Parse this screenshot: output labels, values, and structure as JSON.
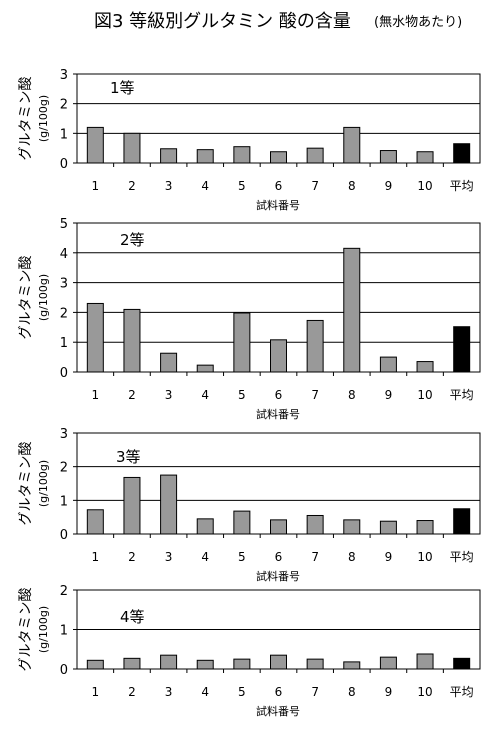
{
  "figure": {
    "title": "図3 等級別グルタミン 酸の含量",
    "subtitle": "(無水物あたり)"
  },
  "chart_data": [
    {
      "type": "bar",
      "label": "1等",
      "ylabel": "グルタミン酸",
      "yunit": "(g/100g)",
      "xlabel": "試料番号",
      "ylim": [
        0,
        3
      ],
      "yticks": [
        "0",
        "1",
        "2",
        "3"
      ],
      "categories": [
        "1",
        "2",
        "3",
        "4",
        "5",
        "6",
        "7",
        "8",
        "9",
        "10",
        "平均"
      ],
      "values": [
        1.2,
        1.0,
        0.48,
        0.45,
        0.55,
        0.38,
        0.5,
        1.2,
        0.42,
        0.38,
        0.65
      ],
      "colors": [
        "#999999",
        "#999999",
        "#999999",
        "#999999",
        "#999999",
        "#999999",
        "#999999",
        "#999999",
        "#999999",
        "#999999",
        "#000000"
      ],
      "grid": true
    },
    {
      "type": "bar",
      "label": "2等",
      "ylabel": "グルタミン酸",
      "yunit": "(g/100g)",
      "xlabel": "試料番号",
      "ylim": [
        0,
        5
      ],
      "yticks": [
        "0",
        "1",
        "2",
        "3",
        "4",
        "5"
      ],
      "categories": [
        "1",
        "2",
        "3",
        "4",
        "5",
        "6",
        "7",
        "8",
        "9",
        "10",
        "平均"
      ],
      "values": [
        2.3,
        2.1,
        0.63,
        0.23,
        1.98,
        1.08,
        1.73,
        4.15,
        0.5,
        0.35,
        1.52
      ],
      "colors": [
        "#999999",
        "#999999",
        "#999999",
        "#999999",
        "#999999",
        "#999999",
        "#999999",
        "#999999",
        "#999999",
        "#999999",
        "#000000"
      ],
      "grid": true
    },
    {
      "type": "bar",
      "label": "3等",
      "ylabel": "グルタミン酸",
      "yunit": "(g/100g)",
      "xlabel": "試料番号",
      "ylim": [
        0,
        3
      ],
      "yticks": [
        "0",
        "1",
        "2",
        "3"
      ],
      "categories": [
        "1",
        "2",
        "3",
        "4",
        "5",
        "6",
        "7",
        "8",
        "9",
        "10",
        "平均"
      ],
      "values": [
        0.72,
        1.68,
        1.75,
        0.45,
        0.68,
        0.42,
        0.55,
        0.42,
        0.38,
        0.4,
        0.75
      ],
      "colors": [
        "#999999",
        "#999999",
        "#999999",
        "#999999",
        "#999999",
        "#999999",
        "#999999",
        "#999999",
        "#999999",
        "#999999",
        "#000000"
      ],
      "grid": true
    },
    {
      "type": "bar",
      "label": "4等",
      "ylabel": "グルタミン酸",
      "yunit": "(g/100g)",
      "xlabel": "試料番号",
      "ylim": [
        0,
        2
      ],
      "yticks": [
        "0",
        "1",
        "2"
      ],
      "categories": [
        "1",
        "2",
        "3",
        "4",
        "5",
        "6",
        "7",
        "8",
        "9",
        "10",
        "平均"
      ],
      "values": [
        0.22,
        0.27,
        0.35,
        0.22,
        0.25,
        0.35,
        0.25,
        0.18,
        0.3,
        0.38,
        0.27
      ],
      "colors": [
        "#999999",
        "#999999",
        "#999999",
        "#999999",
        "#999999",
        "#999999",
        "#999999",
        "#999999",
        "#999999",
        "#999999",
        "#000000"
      ],
      "grid": true
    }
  ]
}
